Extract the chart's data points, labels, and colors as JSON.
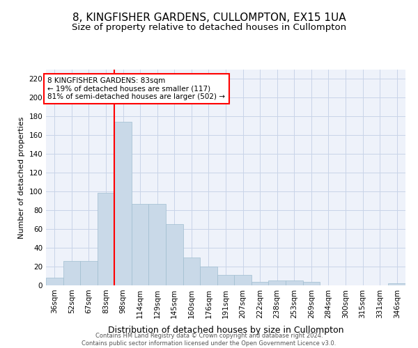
{
  "title": "8, KINGFISHER GARDENS, CULLOMPTON, EX15 1UA",
  "subtitle": "Size of property relative to detached houses in Cullompton",
  "xlabel": "Distribution of detached houses by size in Cullompton",
  "ylabel": "Number of detached properties",
  "categories": [
    "36sqm",
    "52sqm",
    "67sqm",
    "83sqm",
    "98sqm",
    "114sqm",
    "129sqm",
    "145sqm",
    "160sqm",
    "176sqm",
    "191sqm",
    "207sqm",
    "222sqm",
    "238sqm",
    "253sqm",
    "269sqm",
    "284sqm",
    "300sqm",
    "315sqm",
    "331sqm",
    "346sqm"
  ],
  "values": [
    8,
    26,
    26,
    99,
    174,
    87,
    87,
    65,
    30,
    20,
    11,
    11,
    4,
    5,
    5,
    4,
    0,
    0,
    0,
    0,
    2
  ],
  "bar_color": "#c9d9e8",
  "bar_edge_color": "#a0bdd0",
  "property_line_idx": 3,
  "annotation_line1": "8 KINGFISHER GARDENS: 83sqm",
  "annotation_line2": "← 19% of detached houses are smaller (117)",
  "annotation_line3": "81% of semi-detached houses are larger (502) →",
  "annotation_box_color": "white",
  "annotation_box_edge_color": "red",
  "vline_color": "red",
  "ylim": [
    0,
    230
  ],
  "yticks": [
    0,
    20,
    40,
    60,
    80,
    100,
    120,
    140,
    160,
    180,
    200,
    220
  ],
  "grid_color": "#c8d4e8",
  "background_color": "#eef2fa",
  "footer_line1": "Contains HM Land Registry data © Crown copyright and database right 2024.",
  "footer_line2": "Contains public sector information licensed under the Open Government Licence v3.0.",
  "title_fontsize": 11,
  "subtitle_fontsize": 9.5,
  "xlabel_fontsize": 9,
  "ylabel_fontsize": 8,
  "tick_fontsize": 7.5,
  "annotation_fontsize": 7.5,
  "footer_fontsize": 6
}
